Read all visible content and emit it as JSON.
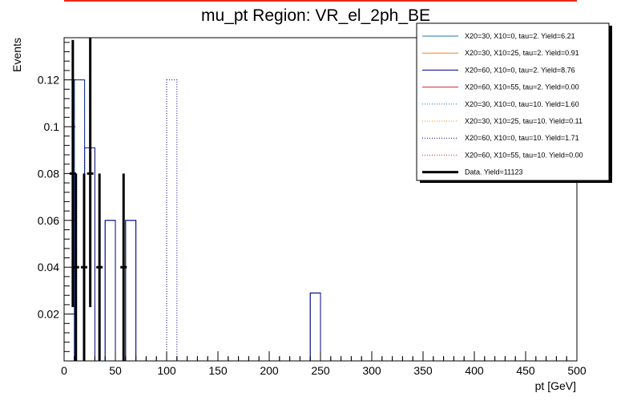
{
  "chart_data": {
    "type": "bar",
    "title": "mu_pt Region: VR_el_2ph_BE",
    "xlabel": "pt [GeV]",
    "ylabel": "Events",
    "xlim": [
      0,
      500
    ],
    "ylim": [
      0,
      0.138
    ],
    "bin_width": 10,
    "xticks": [
      0,
      50,
      100,
      150,
      200,
      250,
      300,
      350,
      400,
      450,
      500
    ],
    "xtick_labels": [
      "0",
      "50",
      "100",
      "150",
      "200",
      "250",
      "300",
      "350",
      "400",
      "450",
      "500"
    ],
    "yticks": [
      0.02,
      0.04,
      0.06,
      0.08,
      0.1,
      0.12
    ],
    "ytick_labels": [
      "0.02",
      "0.04",
      "0.06",
      "0.08",
      "0.1",
      "0.12"
    ],
    "grid": false,
    "legend_position": "top-right",
    "series": [
      {
        "name": "X20=30, X10=0, tau=2. Yield=6.21",
        "color": "#1f77b4",
        "style": "solid",
        "bins": [
          {
            "x": 40,
            "y": 0.06
          },
          {
            "x": 60,
            "y": 0.06
          },
          {
            "x": 240,
            "y": 0.029
          }
        ]
      },
      {
        "name": "X20=30, X10=25, tau=2. Yield=0.91",
        "color": "#ff7f0e",
        "style": "solid",
        "bins": []
      },
      {
        "name": "X20=60, X10=0, tau=2. Yield=8.76",
        "color": "#000080",
        "style": "solid",
        "bins": [
          {
            "x": 10,
            "y": 0.12
          },
          {
            "x": 20,
            "y": 0.091
          },
          {
            "x": 40,
            "y": 0.06
          },
          {
            "x": 60,
            "y": 0.06
          },
          {
            "x": 240,
            "y": 0.029
          }
        ]
      },
      {
        "name": "X20=60, X10=55, tau=2. Yield=0.00",
        "color": "#d62728",
        "style": "solid",
        "bins": []
      },
      {
        "name": "X20=30, X10=0, tau=10. Yield=1.60",
        "color": "#1f77b4",
        "style": "dotted",
        "bins": [
          {
            "x": 10,
            "y": 0.12
          }
        ]
      },
      {
        "name": "X20=30, X10=25, tau=10. Yield=0.11",
        "color": "#ff7f0e",
        "style": "dotted",
        "bins": []
      },
      {
        "name": "X20=60, X10=0, tau=10. Yield=1.71",
        "color": "#000080",
        "style": "dotted",
        "bins": [
          {
            "x": 100,
            "y": 0.12
          }
        ]
      },
      {
        "name": "X20=60, X10=55, tau=10. Yield=0.00",
        "color": "#d62728",
        "style": "dotted",
        "bins": []
      }
    ],
    "data_points": {
      "name": "Data. Yield=11123",
      "color": "#000000",
      "points": [
        {
          "x": 8.5,
          "y": 0.08,
          "ylow": 0.023,
          "yhigh": 0.137
        },
        {
          "x": 11.5,
          "y": 0.04,
          "ylow": 0.0,
          "yhigh": 0.08
        },
        {
          "x": 19.5,
          "y": 0.04,
          "ylow": 0.0,
          "yhigh": 0.08
        },
        {
          "x": 25.5,
          "y": 0.08,
          "ylow": 0.023,
          "yhigh": 0.138
        },
        {
          "x": 34.5,
          "y": 0.04,
          "ylow": 0.0,
          "yhigh": 0.08
        },
        {
          "x": 58.0,
          "y": 0.04,
          "ylow": 0.0,
          "yhigh": 0.08
        }
      ]
    }
  }
}
